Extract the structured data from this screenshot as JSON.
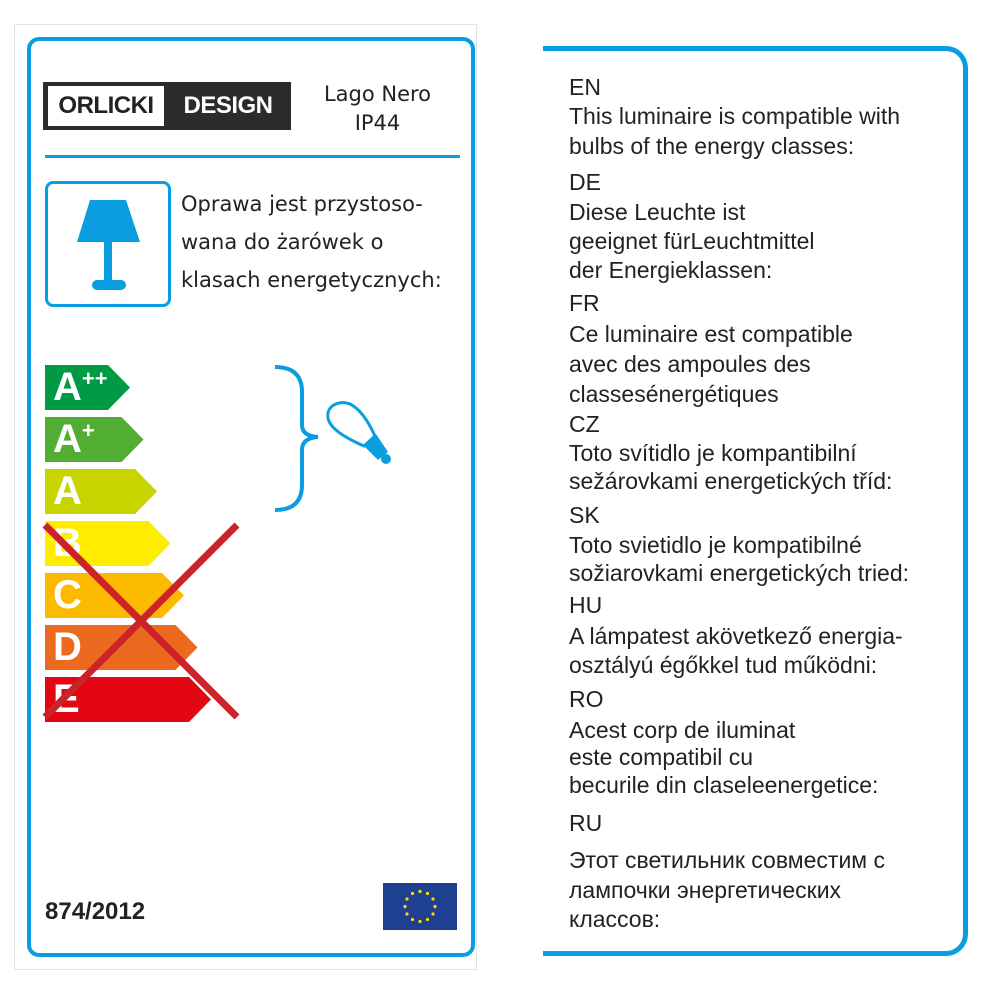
{
  "brand": {
    "left": "ORLICKI",
    "right": "DESIGN"
  },
  "product": {
    "name": "Lago Nero",
    "rating": "IP44"
  },
  "polish_text": [
    "Oprawa jest przystoso-",
    "wana do żarówek o",
    "klasach energetycznych:"
  ],
  "energy_classes": [
    {
      "label": "A",
      "sup": "++",
      "color": "#009a44",
      "compatible": true
    },
    {
      "label": "A",
      "sup": "+",
      "color": "#52ae32",
      "compatible": true
    },
    {
      "label": "A",
      "sup": "",
      "color": "#c8d400",
      "compatible": true
    },
    {
      "label": "B",
      "sup": "",
      "color": "#ffed00",
      "compatible": false
    },
    {
      "label": "C",
      "sup": "",
      "color": "#fbba00",
      "compatible": false
    },
    {
      "label": "D",
      "sup": "",
      "color": "#eb6a1f",
      "compatible": false
    },
    {
      "label": "E",
      "sup": "",
      "color": "#e30613",
      "compatible": false
    }
  ],
  "regulation": "874/2012",
  "colors": {
    "accent": "#0a9ee0",
    "cross": "#cc2229",
    "eu_blue": "#1f3f93",
    "eu_star": "#ffdd00"
  },
  "icons": [
    "lamp-icon",
    "bulb-icon",
    "eu-flag-icon"
  ],
  "languages": [
    {
      "code": "EN",
      "lines": [
        "This luminaire is compatible with",
        "bulbs of the energy classes:"
      ]
    },
    {
      "code": "DE",
      "lines": [
        "Diese Leuchte ist",
        "geeignet fürLeuchtmittel",
        "der Energieklassen:"
      ]
    },
    {
      "code": "FR",
      "lines": [
        "Ce luminaire est compatible",
        "avec des ampoules des",
        "classesénergétiques"
      ]
    },
    {
      "code": "CZ",
      "lines": [
        "Toto svítidlo je kompantibilní",
        "sežárovkami energetických tříd:"
      ]
    },
    {
      "code": "SK",
      "lines": [
        "Toto svietidlo je kompatibilné",
        "sožiarovkami energetických tried:"
      ]
    },
    {
      "code": "HU",
      "lines": [
        "A lámpatest akövetkező energia-",
        "osztályú égőkkel tud működni:"
      ]
    },
    {
      "code": "RO",
      "lines": [
        "Acest corp de iluminat",
        "este compatibil cu",
        "becurile din claseleenergetice:"
      ]
    },
    {
      "code": "RU",
      "lines": [
        "Этот светильник совместим с",
        "лампочки энергетических",
        "классов:"
      ]
    }
  ]
}
